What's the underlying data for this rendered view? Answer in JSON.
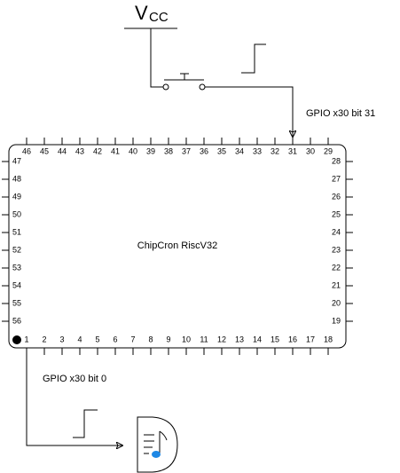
{
  "supply": {
    "symbol": "V",
    "subscript": "CC"
  },
  "labels": {
    "input": "GPIO  x30  bit 31",
    "output": "GPIO  x30  bit 0"
  },
  "chip": {
    "name": "ChipCron RiscV32",
    "pins": {
      "top": [
        "46",
        "45",
        "44",
        "43",
        "42",
        "41",
        "40",
        "39",
        "38",
        "37",
        "36",
        "35",
        "34",
        "33",
        "32",
        "31",
        "30",
        "29"
      ],
      "bottom": [
        "1",
        "2",
        "3",
        "4",
        "5",
        "6",
        "7",
        "8",
        "9",
        "10",
        "11",
        "12",
        "13",
        "14",
        "15",
        "16",
        "17",
        "18"
      ],
      "left": [
        "47",
        "48",
        "49",
        "50",
        "51",
        "52",
        "53",
        "54",
        "55",
        "56"
      ],
      "right": [
        "28",
        "27",
        "26",
        "25",
        "24",
        "23",
        "22",
        "21",
        "20",
        "19"
      ]
    }
  }
}
